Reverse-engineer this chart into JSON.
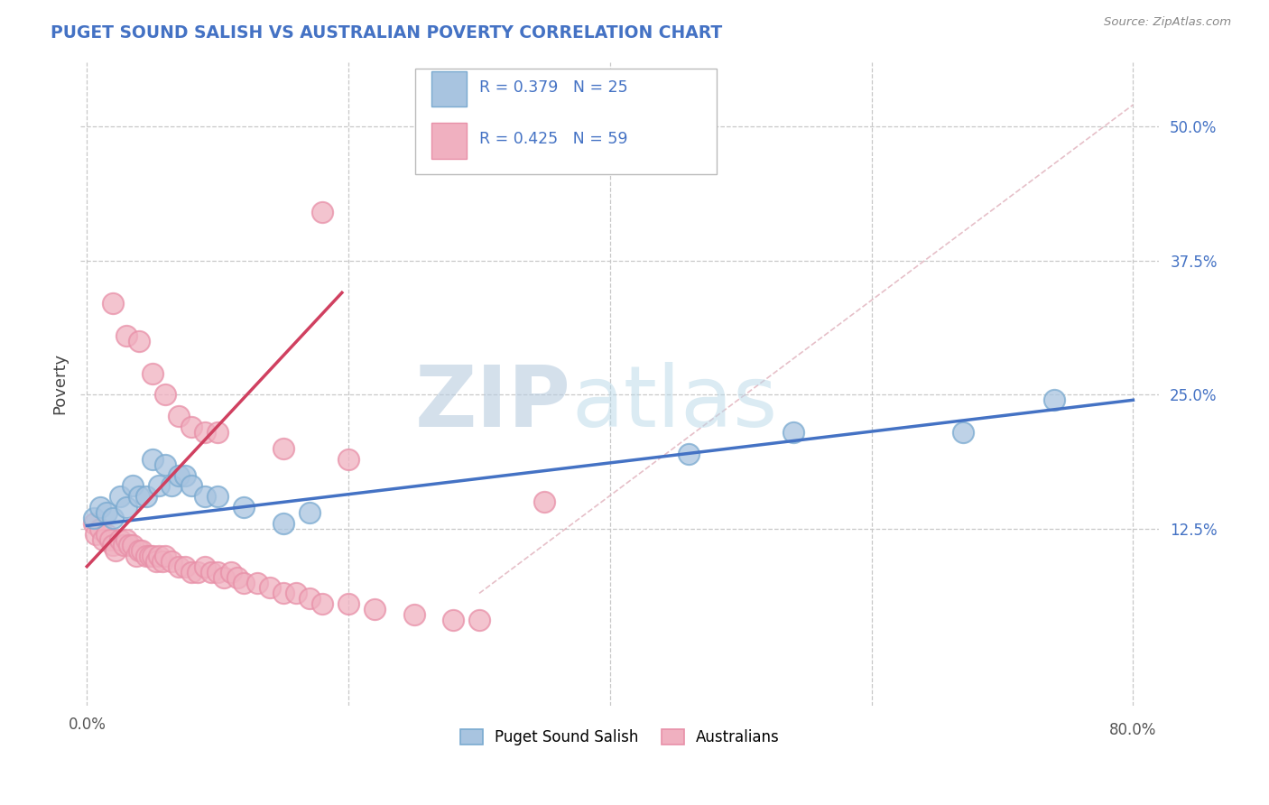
{
  "title": "PUGET SOUND SALISH VS AUSTRALIAN POVERTY CORRELATION CHART",
  "source": "Source: ZipAtlas.com",
  "ylabel": "Poverty",
  "xlim": [
    -0.005,
    0.82
  ],
  "ylim": [
    -0.04,
    0.56
  ],
  "xticks": [
    0.0,
    0.2,
    0.4,
    0.6,
    0.8
  ],
  "yticks_right": [
    0.125,
    0.25,
    0.375,
    0.5
  ],
  "ytick_labels_right": [
    "12.5%",
    "25.0%",
    "37.5%",
    "50.0%"
  ],
  "grid_color": "#c8c8c8",
  "background_color": "#ffffff",
  "watermark_zip": "ZIP",
  "watermark_atlas": "atlas",
  "watermark_color_zip": "#c5d8ee",
  "watermark_color_atlas": "#c5d8ee",
  "legend_R1": "R = 0.379",
  "legend_N1": "N = 25",
  "legend_R2": "R = 0.425",
  "legend_N2": "N = 59",
  "blue_color": "#a8c4e0",
  "pink_color": "#f0b0c0",
  "blue_edge_color": "#7aaad0",
  "pink_edge_color": "#e890a8",
  "blue_line_color": "#4472c4",
  "pink_line_color": "#d04060",
  "title_color": "#4472c4",
  "axis_label_color": "#4472c4",
  "legend_text_color": "#4472c4",
  "blue_scatter_x": [
    0.005,
    0.01,
    0.015,
    0.02,
    0.025,
    0.03,
    0.035,
    0.04,
    0.045,
    0.05,
    0.055,
    0.06,
    0.065,
    0.07,
    0.075,
    0.08,
    0.09,
    0.1,
    0.12,
    0.15,
    0.17,
    0.46,
    0.54,
    0.67,
    0.74
  ],
  "blue_scatter_y": [
    0.135,
    0.145,
    0.14,
    0.135,
    0.155,
    0.145,
    0.165,
    0.155,
    0.155,
    0.19,
    0.165,
    0.185,
    0.165,
    0.175,
    0.175,
    0.165,
    0.155,
    0.155,
    0.145,
    0.13,
    0.14,
    0.195,
    0.215,
    0.215,
    0.245
  ],
  "pink_scatter_x": [
    0.005,
    0.007,
    0.01,
    0.012,
    0.015,
    0.018,
    0.02,
    0.022,
    0.025,
    0.028,
    0.03,
    0.032,
    0.035,
    0.038,
    0.04,
    0.042,
    0.045,
    0.048,
    0.05,
    0.053,
    0.055,
    0.058,
    0.06,
    0.065,
    0.07,
    0.075,
    0.08,
    0.085,
    0.09,
    0.095,
    0.1,
    0.105,
    0.11,
    0.115,
    0.12,
    0.13,
    0.14,
    0.15,
    0.16,
    0.17,
    0.18,
    0.2,
    0.22,
    0.25,
    0.28,
    0.3,
    0.18,
    0.02,
    0.03,
    0.04,
    0.05,
    0.06,
    0.07,
    0.08,
    0.09,
    0.1,
    0.15,
    0.2,
    0.35
  ],
  "pink_scatter_y": [
    0.13,
    0.12,
    0.125,
    0.115,
    0.12,
    0.115,
    0.11,
    0.105,
    0.115,
    0.11,
    0.115,
    0.11,
    0.11,
    0.1,
    0.105,
    0.105,
    0.1,
    0.1,
    0.1,
    0.095,
    0.1,
    0.095,
    0.1,
    0.095,
    0.09,
    0.09,
    0.085,
    0.085,
    0.09,
    0.085,
    0.085,
    0.08,
    0.085,
    0.08,
    0.075,
    0.075,
    0.07,
    0.065,
    0.065,
    0.06,
    0.055,
    0.055,
    0.05,
    0.045,
    0.04,
    0.04,
    0.42,
    0.335,
    0.305,
    0.3,
    0.27,
    0.25,
    0.23,
    0.22,
    0.215,
    0.215,
    0.2,
    0.19,
    0.15
  ],
  "blue_line_x0": 0.0,
  "blue_line_x1": 0.8,
  "blue_line_y0": 0.128,
  "blue_line_y1": 0.245,
  "pink_line_x0": 0.0,
  "pink_line_x1": 0.195,
  "pink_line_y0": 0.09,
  "pink_line_y1": 0.345,
  "diag_line_x0": 0.3,
  "diag_line_x1": 0.8,
  "diag_line_y0": 0.065,
  "diag_line_y1": 0.52,
  "diag_line_color": "#e0b0bb"
}
